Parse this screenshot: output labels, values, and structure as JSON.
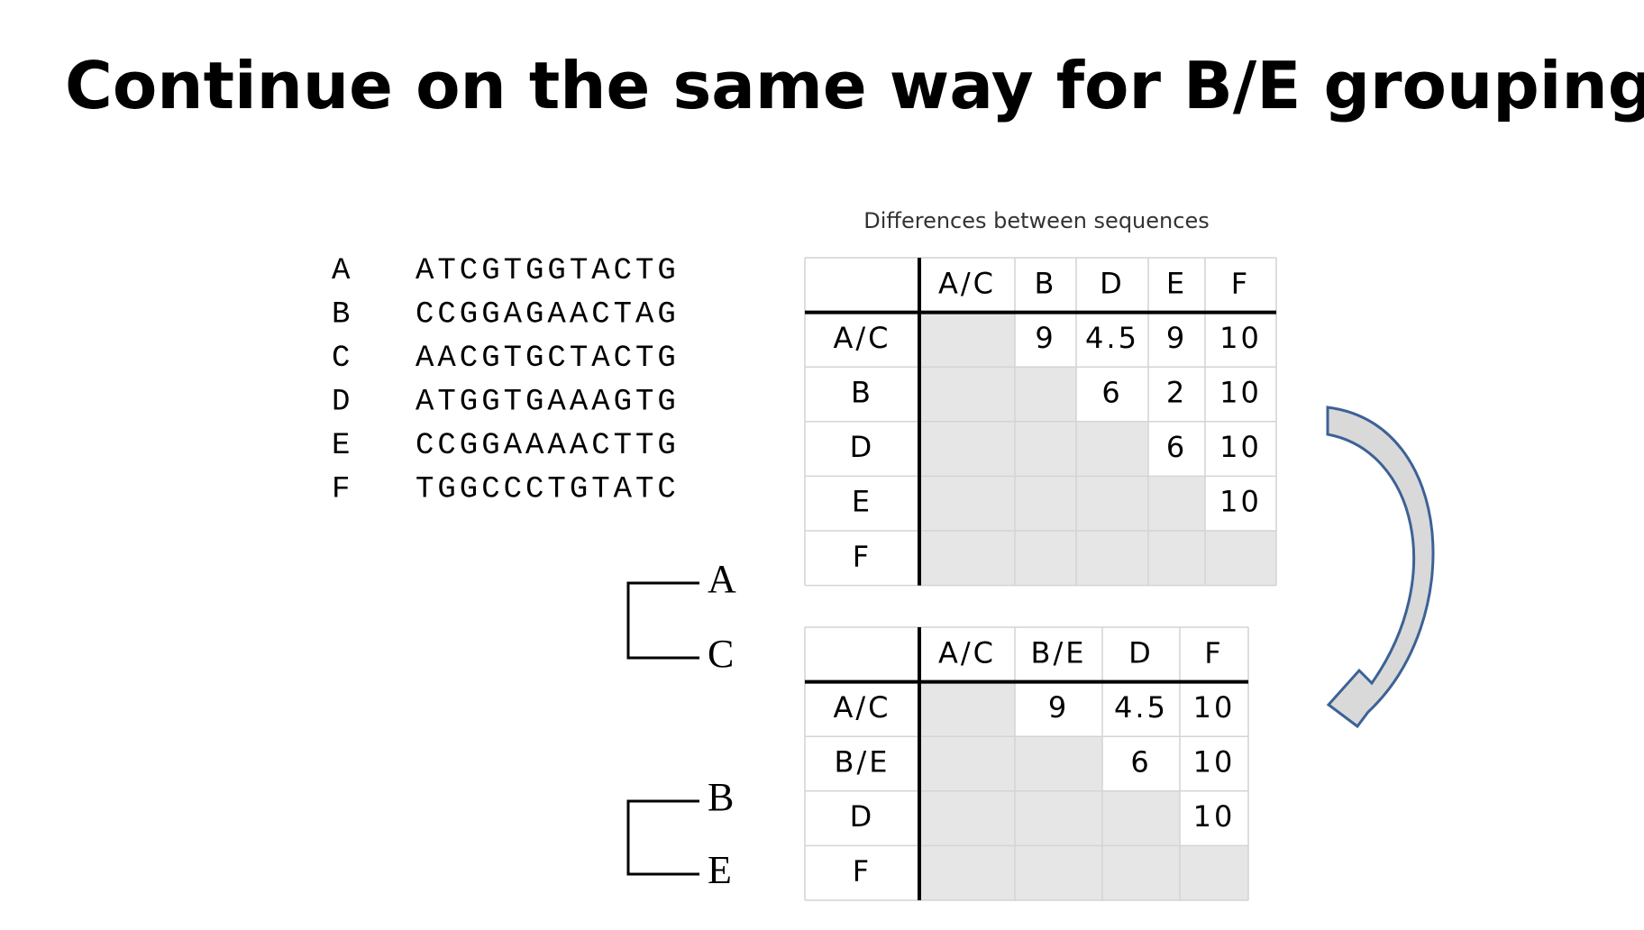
{
  "title": "Continue on the same way for B/E grouping",
  "sequences": [
    {
      "label": "A",
      "seq": "ATCGTGGTACTG"
    },
    {
      "label": "B",
      "seq": "CCGGAGAACTAG"
    },
    {
      "label": "C",
      "seq": "AACGTGCTACTG"
    },
    {
      "label": "D",
      "seq": "ATGGTGAAAGTG"
    },
    {
      "label": "E",
      "seq": "CCGGAAAACTTG"
    },
    {
      "label": "F",
      "seq": "TGGCCCTGTATC"
    }
  ],
  "matrix_caption": "Differences between sequences",
  "table1": {
    "columns": [
      "A/C",
      "B",
      "D",
      "E",
      "F"
    ],
    "rows": [
      {
        "label": "A/C",
        "cells": [
          null,
          9,
          4.5,
          9,
          10
        ]
      },
      {
        "label": "B",
        "cells": [
          null,
          null,
          6,
          2,
          10
        ]
      },
      {
        "label": "D",
        "cells": [
          null,
          null,
          null,
          6,
          10
        ]
      },
      {
        "label": "E",
        "cells": [
          null,
          null,
          null,
          null,
          10
        ]
      },
      {
        "label": "F",
        "cells": [
          null,
          null,
          null,
          null,
          null
        ]
      }
    ]
  },
  "table2": {
    "columns": [
      "A/C",
      "B/E",
      "D",
      "F"
    ],
    "rows": [
      {
        "label": "A/C",
        "cells": [
          null,
          9,
          4.5,
          10
        ]
      },
      {
        "label": "B/E",
        "cells": [
          null,
          null,
          6,
          10
        ]
      },
      {
        "label": "D",
        "cells": [
          null,
          null,
          null,
          10
        ]
      },
      {
        "label": "F",
        "cells": [
          null,
          null,
          null,
          null
        ]
      }
    ]
  },
  "tree1": {
    "leaves": [
      "A",
      "C"
    ]
  },
  "tree2": {
    "leaves": [
      "B",
      "E"
    ]
  }
}
